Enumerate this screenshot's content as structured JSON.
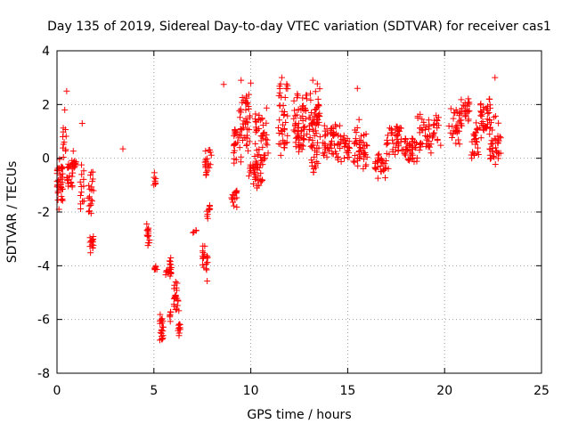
{
  "chart_data": {
    "type": "scatter",
    "title": "Day 135 of 2019, Sidereal Day-to-day VTEC variation (SDTVAR) for receiver cas1",
    "xlabel": "GPS time / hours",
    "ylabel": "SDTVAR / TECUs",
    "xlim": [
      0,
      25
    ],
    "ylim": [
      -8,
      4
    ],
    "xticks": [
      0,
      5,
      10,
      15,
      20,
      25
    ],
    "yticks": [
      -8,
      -6,
      -4,
      -2,
      0,
      2,
      4
    ],
    "grid": true,
    "marker": "+",
    "marker_color": "#ff0000",
    "clusters_note": "Approximate trace clusters [start_hour, end_hour, center_TECU, spread_TECU, n_points] read from the plot",
    "clusters": [
      [
        0.0,
        0.3,
        -0.9,
        1.0,
        40
      ],
      [
        0.3,
        0.5,
        0.6,
        0.8,
        10
      ],
      [
        0.5,
        0.8,
        -0.6,
        0.7,
        20
      ],
      [
        0.8,
        1.0,
        -0.2,
        0.6,
        14
      ],
      [
        1.2,
        1.4,
        -1.2,
        1.2,
        14
      ],
      [
        1.6,
        1.9,
        -1.2,
        1.2,
        20
      ],
      [
        1.7,
        1.9,
        -3.3,
        0.5,
        14
      ],
      [
        4.6,
        4.8,
        -2.9,
        0.5,
        16
      ],
      [
        5.0,
        5.1,
        -0.7,
        0.4,
        6
      ],
      [
        5.0,
        5.2,
        -4.2,
        0.2,
        6
      ],
      [
        5.3,
        5.5,
        -6.4,
        0.6,
        22
      ],
      [
        5.6,
        5.9,
        -4.1,
        0.5,
        22
      ],
      [
        5.8,
        5.9,
        -5.9,
        0.3,
        6
      ],
      [
        6.0,
        6.3,
        -5.2,
        0.7,
        22
      ],
      [
        6.2,
        6.4,
        -6.4,
        0.3,
        10
      ],
      [
        7.0,
        7.2,
        -2.7,
        0.1,
        4
      ],
      [
        7.5,
        7.8,
        -3.8,
        0.8,
        20
      ],
      [
        7.7,
        7.9,
        -2.0,
        0.4,
        10
      ],
      [
        7.6,
        8.0,
        -0.2,
        0.6,
        20
      ],
      [
        9.0,
        9.3,
        -1.5,
        0.4,
        14
      ],
      [
        9.1,
        9.5,
        0.5,
        0.8,
        24
      ],
      [
        9.4,
        10.0,
        1.3,
        1.2,
        40
      ],
      [
        9.9,
        10.6,
        -0.6,
        0.6,
        40
      ],
      [
        10.2,
        10.9,
        0.8,
        1.2,
        45
      ],
      [
        11.4,
        11.9,
        1.5,
        1.5,
        40
      ],
      [
        12.2,
        12.9,
        1.6,
        1.0,
        45
      ],
      [
        12.3,
        12.8,
        0.6,
        0.4,
        20
      ],
      [
        13.0,
        13.6,
        1.6,
        1.4,
        50
      ],
      [
        13.1,
        13.5,
        0.1,
        0.7,
        20
      ],
      [
        13.7,
        14.6,
        0.6,
        0.8,
        50
      ],
      [
        14.6,
        15.1,
        0.4,
        0.6,
        25
      ],
      [
        15.3,
        16.0,
        0.5,
        1.0,
        45
      ],
      [
        16.4,
        17.1,
        -0.3,
        0.5,
        30
      ],
      [
        17.0,
        17.8,
        0.7,
        0.6,
        40
      ],
      [
        17.8,
        18.6,
        0.3,
        0.6,
        40
      ],
      [
        18.6,
        19.8,
        0.9,
        0.8,
        55
      ],
      [
        20.2,
        20.9,
        1.2,
        0.7,
        30
      ],
      [
        20.8,
        21.3,
        1.8,
        0.6,
        25
      ],
      [
        21.3,
        21.8,
        0.7,
        0.8,
        25
      ],
      [
        21.8,
        22.4,
        1.5,
        0.8,
        35
      ],
      [
        22.3,
        22.9,
        0.6,
        1.0,
        40
      ]
    ],
    "outliers": [
      [
        0.5,
        2.5
      ],
      [
        0.4,
        1.8
      ],
      [
        0.3,
        0.8
      ],
      [
        1.3,
        1.3
      ],
      [
        3.4,
        0.35
      ],
      [
        5.0,
        -1.0
      ],
      [
        8.6,
        2.75
      ],
      [
        9.5,
        2.9
      ],
      [
        10.0,
        2.8
      ],
      [
        11.6,
        3.0
      ],
      [
        13.2,
        2.9
      ],
      [
        15.5,
        2.6
      ],
      [
        22.6,
        3.0
      ],
      [
        22.3,
        2.2
      ],
      [
        0.1,
        -1.9
      ]
    ]
  }
}
